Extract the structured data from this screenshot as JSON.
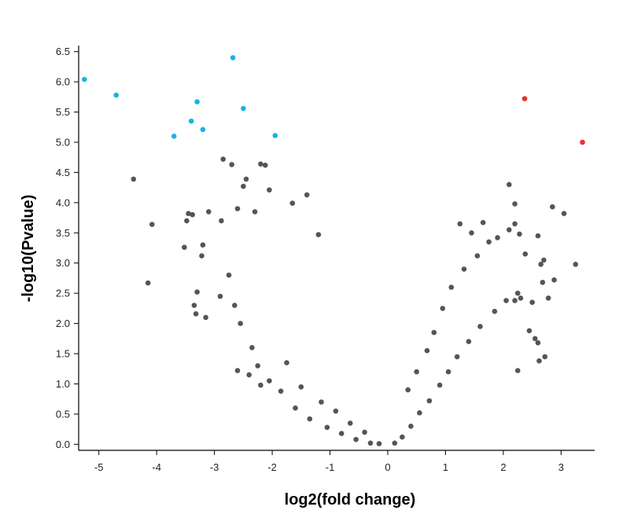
{
  "chart_data": {
    "type": "scatter",
    "title": "",
    "xlabel": "log2(fold change)",
    "ylabel": "-log10(Pvalue)",
    "xlim": [
      -5.35,
      3.58
    ],
    "ylim": [
      -0.1,
      6.6
    ],
    "grid": false,
    "legend": "none",
    "x_ticks": [
      -5,
      -4,
      -3,
      -2,
      -1,
      0,
      1,
      2,
      3
    ],
    "y_ticks": [
      "0.0",
      "0.5",
      "1.0",
      "1.5",
      "2.0",
      "2.5",
      "3.0",
      "3.5",
      "4.0",
      "4.5",
      "5.0",
      "5.5",
      "6.0",
      "6.5"
    ],
    "colors": {
      "not_significant": "#555555",
      "down": "#1ab2e8",
      "up": "#e8312f"
    },
    "series": [
      {
        "color": "#1ab2e8",
        "points": [
          [
            -5.25,
            6.04
          ],
          [
            -4.7,
            5.78
          ],
          [
            -3.7,
            5.1
          ],
          [
            -3.4,
            5.35
          ],
          [
            -3.3,
            5.67
          ],
          [
            -3.2,
            5.21
          ],
          [
            -2.68,
            6.4
          ],
          [
            -2.5,
            5.56
          ],
          [
            -1.95,
            5.11
          ]
        ]
      },
      {
        "color": "#e8312f",
        "points": [
          [
            2.37,
            5.72
          ],
          [
            3.37,
            5.0
          ]
        ]
      },
      {
        "color": "#555555",
        "points": [
          [
            -4.4,
            4.39
          ],
          [
            -4.08,
            3.64
          ],
          [
            -4.15,
            2.67
          ],
          [
            -3.45,
            3.82
          ],
          [
            -3.38,
            3.8
          ],
          [
            -3.52,
            3.26
          ],
          [
            -3.48,
            3.7
          ],
          [
            -3.3,
            2.52
          ],
          [
            -3.35,
            2.3
          ],
          [
            -3.32,
            2.16
          ],
          [
            -3.15,
            2.1
          ],
          [
            -3.2,
            3.3
          ],
          [
            -3.22,
            3.12
          ],
          [
            -2.85,
            4.72
          ],
          [
            -2.7,
            4.63
          ],
          [
            -2.45,
            4.39
          ],
          [
            -2.2,
            4.64
          ],
          [
            -2.12,
            4.62
          ],
          [
            -2.5,
            4.27
          ],
          [
            -2.05,
            4.21
          ],
          [
            -1.4,
            4.13
          ],
          [
            -1.65,
            3.99
          ],
          [
            -1.2,
            3.47
          ],
          [
            -2.6,
            3.9
          ],
          [
            -2.3,
            3.85
          ],
          [
            -3.1,
            3.85
          ],
          [
            -2.88,
            3.7
          ],
          [
            -2.75,
            2.8
          ],
          [
            -2.9,
            2.45
          ],
          [
            -2.65,
            2.3
          ],
          [
            -2.55,
            2.0
          ],
          [
            -2.35,
            1.6
          ],
          [
            -2.25,
            1.3
          ],
          [
            -2.05,
            1.05
          ],
          [
            -1.85,
            0.88
          ],
          [
            -1.6,
            0.6
          ],
          [
            -1.35,
            0.42
          ],
          [
            -1.05,
            0.28
          ],
          [
            -0.8,
            0.18
          ],
          [
            -0.55,
            0.08
          ],
          [
            -0.3,
            0.02
          ],
          [
            -0.15,
            0.01
          ],
          [
            -2.6,
            1.22
          ],
          [
            -2.4,
            1.15
          ],
          [
            -2.2,
            0.98
          ],
          [
            -1.75,
            1.35
          ],
          [
            -1.5,
            0.95
          ],
          [
            -1.15,
            0.7
          ],
          [
            -0.9,
            0.55
          ],
          [
            -0.65,
            0.35
          ],
          [
            -0.4,
            0.2
          ],
          [
            0.12,
            0.02
          ],
          [
            0.25,
            0.12
          ],
          [
            0.4,
            0.3
          ],
          [
            0.55,
            0.52
          ],
          [
            0.72,
            0.72
          ],
          [
            0.9,
            0.98
          ],
          [
            1.05,
            1.2
          ],
          [
            1.2,
            1.45
          ],
          [
            1.4,
            1.7
          ],
          [
            1.6,
            1.95
          ],
          [
            1.85,
            2.2
          ],
          [
            2.05,
            2.38
          ],
          [
            2.25,
            2.5
          ],
          [
            0.35,
            0.9
          ],
          [
            0.5,
            1.2
          ],
          [
            0.68,
            1.55
          ],
          [
            0.8,
            1.85
          ],
          [
            0.95,
            2.25
          ],
          [
            1.1,
            2.6
          ],
          [
            1.32,
            2.9
          ],
          [
            1.55,
            3.12
          ],
          [
            1.75,
            3.35
          ],
          [
            1.25,
            3.65
          ],
          [
            1.45,
            3.5
          ],
          [
            1.65,
            3.67
          ],
          [
            2.1,
            4.3
          ],
          [
            2.2,
            3.98
          ],
          [
            2.2,
            3.65
          ],
          [
            2.1,
            3.55
          ],
          [
            2.28,
            3.48
          ],
          [
            1.9,
            3.42
          ],
          [
            2.38,
            3.15
          ],
          [
            2.85,
            3.93
          ],
          [
            3.05,
            3.82
          ],
          [
            3.25,
            2.98
          ],
          [
            2.6,
            3.45
          ],
          [
            2.7,
            3.05
          ],
          [
            2.65,
            2.98
          ],
          [
            2.88,
            2.72
          ],
          [
            2.68,
            2.68
          ],
          [
            2.78,
            2.42
          ],
          [
            2.3,
            2.42
          ],
          [
            2.5,
            2.35
          ],
          [
            2.2,
            2.38
          ],
          [
            2.45,
            1.88
          ],
          [
            2.55,
            1.75
          ],
          [
            2.6,
            1.68
          ],
          [
            2.72,
            1.45
          ],
          [
            2.62,
            1.38
          ],
          [
            2.25,
            1.22
          ]
        ]
      }
    ]
  }
}
